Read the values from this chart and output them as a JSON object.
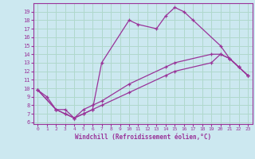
{
  "xlabel": "Windchill (Refroidissement éolien,°C)",
  "background_color": "#cce8f0",
  "grid_color": "#b0d8cc",
  "line_color": "#993399",
  "xlim": [
    -0.5,
    23.5
  ],
  "ylim": [
    5.8,
    20.0
  ],
  "xticks": [
    0,
    1,
    2,
    3,
    4,
    5,
    6,
    7,
    8,
    9,
    10,
    11,
    12,
    13,
    14,
    15,
    16,
    17,
    18,
    19,
    20,
    21,
    22,
    23
  ],
  "yticks": [
    6,
    7,
    8,
    9,
    10,
    11,
    12,
    13,
    14,
    15,
    16,
    17,
    18,
    19
  ],
  "lines": [
    {
      "x": [
        0,
        1,
        2,
        3,
        4,
        5,
        6,
        7,
        10,
        11,
        13,
        14,
        15,
        16,
        17,
        20,
        21,
        22,
        23
      ],
      "y": [
        9.8,
        9.0,
        7.5,
        7.0,
        6.5,
        7.0,
        7.5,
        13.0,
        18.0,
        17.5,
        17.0,
        18.5,
        19.5,
        19.0,
        18.0,
        15.0,
        13.5,
        12.5,
        11.5
      ]
    },
    {
      "x": [
        0,
        2,
        3,
        4,
        5,
        6,
        7,
        10,
        14,
        15,
        19,
        20,
        21,
        22,
        23
      ],
      "y": [
        9.8,
        7.5,
        7.5,
        6.5,
        7.5,
        8.0,
        8.5,
        10.5,
        12.5,
        13.0,
        14.0,
        14.0,
        13.5,
        12.5,
        11.5
      ]
    },
    {
      "x": [
        0,
        2,
        3,
        4,
        5,
        6,
        7,
        10,
        14,
        15,
        19,
        20,
        21,
        22,
        23
      ],
      "y": [
        9.8,
        7.5,
        7.0,
        6.5,
        7.0,
        7.5,
        8.0,
        9.5,
        11.5,
        12.0,
        13.0,
        14.0,
        13.5,
        12.5,
        11.5
      ]
    }
  ]
}
